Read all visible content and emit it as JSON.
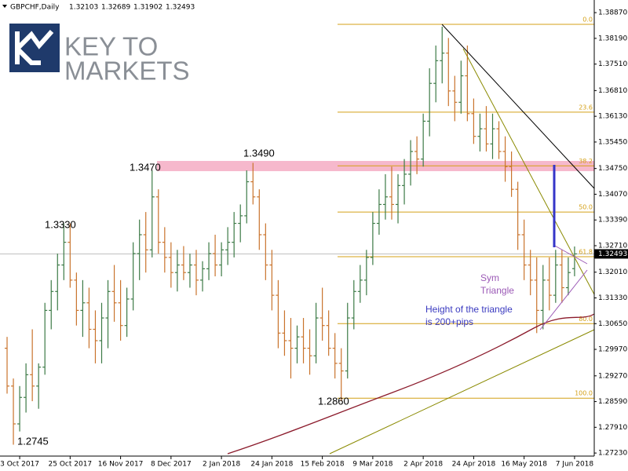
{
  "chart_data": {
    "type": "ohlc",
    "header": {
      "symbol": "GBPCHF,Daily",
      "ohlc_labels": [
        "1.32103",
        "1.32689",
        "1.31902",
        "1.32493"
      ]
    },
    "logo": {
      "line1": "KEY TO",
      "line2": "MARKETS"
    },
    "up_color": "#3c7a46",
    "down_color": "#c9732c",
    "bars": [
      [
        1.3,
        1.303,
        1.288,
        1.29
      ],
      [
        1.29,
        1.292,
        1.2745,
        1.28
      ],
      [
        1.28,
        1.29,
        1.278,
        1.287
      ],
      [
        1.287,
        1.296,
        1.283,
        1.293
      ],
      [
        1.293,
        1.305,
        1.286,
        1.29
      ],
      [
        1.29,
        1.296,
        1.284,
        1.295
      ],
      [
        1.295,
        1.312,
        1.293,
        1.31
      ],
      [
        1.31,
        1.318,
        1.305,
        1.315
      ],
      [
        1.315,
        1.325,
        1.31,
        1.322
      ],
      [
        1.322,
        1.333,
        1.318,
        1.328
      ],
      [
        1.328,
        1.333,
        1.316,
        1.318
      ],
      [
        1.318,
        1.32,
        1.306,
        1.31
      ],
      [
        1.31,
        1.318,
        1.303,
        1.312
      ],
      [
        1.312,
        1.316,
        1.3,
        1.305
      ],
      [
        1.305,
        1.31,
        1.296,
        1.302
      ],
      [
        1.302,
        1.312,
        1.296,
        1.308
      ],
      [
        1.308,
        1.318,
        1.3,
        1.315
      ],
      [
        1.315,
        1.322,
        1.307,
        1.312
      ],
      [
        1.312,
        1.318,
        1.302,
        1.306
      ],
      [
        1.306,
        1.316,
        1.303,
        1.313
      ],
      [
        1.313,
        1.328,
        1.31,
        1.325
      ],
      [
        1.325,
        1.334,
        1.318,
        1.33
      ],
      [
        1.33,
        1.336,
        1.32,
        1.326
      ],
      [
        1.326,
        1.347,
        1.324,
        1.34
      ],
      [
        1.34,
        1.342,
        1.325,
        1.328
      ],
      [
        1.328,
        1.332,
        1.32,
        1.324
      ],
      [
        1.324,
        1.328,
        1.316,
        1.32
      ],
      [
        1.32,
        1.326,
        1.315,
        1.322
      ],
      [
        1.322,
        1.327,
        1.318,
        1.32
      ],
      [
        1.32,
        1.325,
        1.316,
        1.322
      ],
      [
        1.322,
        1.326,
        1.314,
        1.318
      ],
      [
        1.318,
        1.323,
        1.315,
        1.321
      ],
      [
        1.321,
        1.328,
        1.318,
        1.325
      ],
      [
        1.325,
        1.33,
        1.319,
        1.322
      ],
      [
        1.322,
        1.328,
        1.319,
        1.326
      ],
      [
        1.326,
        1.332,
        1.322,
        1.328
      ],
      [
        1.328,
        1.336,
        1.324,
        1.333
      ],
      [
        1.333,
        1.338,
        1.328,
        1.335
      ],
      [
        1.335,
        1.347,
        1.333,
        1.344
      ],
      [
        1.344,
        1.349,
        1.338,
        1.34
      ],
      [
        1.34,
        1.342,
        1.326,
        1.33
      ],
      [
        1.33,
        1.333,
        1.318,
        1.322
      ],
      [
        1.322,
        1.326,
        1.31,
        1.314
      ],
      [
        1.314,
        1.318,
        1.3,
        1.304
      ],
      [
        1.304,
        1.31,
        1.298,
        1.302
      ],
      [
        1.302,
        1.308,
        1.292,
        1.3
      ],
      [
        1.3,
        1.306,
        1.296,
        1.303
      ],
      [
        1.303,
        1.308,
        1.296,
        1.3
      ],
      [
        1.3,
        1.305,
        1.293,
        1.298
      ],
      [
        1.298,
        1.312,
        1.296,
        1.308
      ],
      [
        1.308,
        1.316,
        1.302,
        1.306
      ],
      [
        1.306,
        1.31,
        1.298,
        1.3
      ],
      [
        1.3,
        1.304,
        1.292,
        1.296
      ],
      [
        1.296,
        1.3,
        1.286,
        1.294
      ],
      [
        1.294,
        1.312,
        1.292,
        1.308
      ],
      [
        1.308,
        1.318,
        1.305,
        1.315
      ],
      [
        1.315,
        1.322,
        1.312,
        1.318
      ],
      [
        1.318,
        1.326,
        1.314,
        1.324
      ],
      [
        1.324,
        1.336,
        1.322,
        1.333
      ],
      [
        1.333,
        1.342,
        1.33,
        1.338
      ],
      [
        1.338,
        1.346,
        1.334,
        1.34
      ],
      [
        1.34,
        1.348,
        1.334,
        1.338
      ],
      [
        1.338,
        1.346,
        1.333,
        1.343
      ],
      [
        1.343,
        1.35,
        1.338,
        1.346
      ],
      [
        1.346,
        1.355,
        1.343,
        1.352
      ],
      [
        1.352,
        1.356,
        1.346,
        1.35
      ],
      [
        1.35,
        1.362,
        1.348,
        1.36
      ],
      [
        1.36,
        1.374,
        1.356,
        1.37
      ],
      [
        1.37,
        1.38,
        1.365,
        1.376
      ],
      [
        1.376,
        1.385,
        1.37,
        1.378
      ],
      [
        1.378,
        1.382,
        1.364,
        1.368
      ],
      [
        1.368,
        1.372,
        1.36,
        1.365
      ],
      [
        1.365,
        1.376,
        1.362,
        1.372
      ],
      [
        1.372,
        1.38,
        1.36,
        1.362
      ],
      [
        1.362,
        1.366,
        1.354,
        1.356
      ],
      [
        1.356,
        1.362,
        1.352,
        1.358
      ],
      [
        1.358,
        1.364,
        1.352,
        1.354
      ],
      [
        1.354,
        1.362,
        1.35,
        1.358
      ],
      [
        1.358,
        1.36,
        1.35,
        1.352
      ],
      [
        1.352,
        1.356,
        1.344,
        1.348
      ],
      [
        1.348,
        1.352,
        1.34,
        1.342
      ],
      [
        1.342,
        1.344,
        1.326,
        1.33
      ],
      [
        1.33,
        1.334,
        1.318,
        1.322
      ],
      [
        1.322,
        1.326,
        1.314,
        1.318
      ],
      [
        1.318,
        1.324,
        1.304,
        1.31
      ],
      [
        1.31,
        1.322,
        1.305,
        1.318
      ],
      [
        1.318,
        1.324,
        1.31,
        1.314
      ],
      [
        1.314,
        1.326,
        1.312,
        1.322
      ],
      [
        1.322,
        1.326,
        1.312,
        1.316
      ],
      [
        1.316,
        1.324,
        1.314,
        1.32
      ],
      [
        1.32103,
        1.32689,
        1.31902,
        1.32493
      ]
    ],
    "xlim": [
      -0.5,
      92.5
    ],
    "xticks": [
      {
        "value": 2,
        "label": "3 Oct 2017"
      },
      {
        "value": 10,
        "label": "25 Oct 2017"
      },
      {
        "value": 18,
        "label": "16 Nov 2017"
      },
      {
        "value": 26,
        "label": "8 Dec 2017"
      },
      {
        "value": 34,
        "label": "2 Jan 2018"
      },
      {
        "value": 42,
        "label": "24 Jan 2018"
      },
      {
        "value": 50,
        "label": "15 Feb 2018"
      },
      {
        "value": 58,
        "label": "9 Mar 2018"
      },
      {
        "value": 66,
        "label": "2 Apr 2018"
      },
      {
        "value": 74,
        "label": "24 Apr 2018"
      },
      {
        "value": 82,
        "label": "16 May 2018"
      },
      {
        "value": 90,
        "label": "7 Jun 2018"
      }
    ],
    "ylim": [
      1.2717,
      1.391
    ],
    "yticks": [
      {
        "value": 1.3887,
        "label": "1.38870"
      },
      {
        "value": 1.3819,
        "label": "1.38190"
      },
      {
        "value": 1.3751,
        "label": "1.37510"
      },
      {
        "value": 1.3681,
        "label": "1.36810"
      },
      {
        "value": 1.3613,
        "label": "1.36130"
      },
      {
        "value": 1.3545,
        "label": "1.35450"
      },
      {
        "value": 1.3475,
        "label": "1.34750"
      },
      {
        "value": 1.3407,
        "label": "1.34070"
      },
      {
        "value": 1.3339,
        "label": "1.33390"
      },
      {
        "value": 1.3271,
        "label": "1.32710"
      },
      {
        "value": 1.3201,
        "label": "1.32010"
      },
      {
        "value": 1.3133,
        "label": "1.31330"
      },
      {
        "value": 1.3065,
        "label": "1.30650"
      },
      {
        "value": 1.2997,
        "label": "1.29970"
      },
      {
        "value": 1.2927,
        "label": "1.29270"
      },
      {
        "value": 1.2859,
        "label": "1.28590"
      },
      {
        "value": 1.2791,
        "label": "1.27910"
      },
      {
        "value": 1.2723,
        "label": "1.27230"
      }
    ],
    "last_price": {
      "value": 1.32493,
      "label": "1.32493"
    },
    "zone": {
      "values": [
        1.3468,
        1.3495
      ],
      "color": "#f6b8cc"
    },
    "fibonacci": {
      "color": "#d4a017",
      "levels": [
        {
          "value": 1.3856,
          "label": "0.0"
        },
        {
          "value": 1.3624,
          "label": "23.6"
        },
        {
          "value": 1.3482,
          "label": "38.2"
        },
        {
          "value": 1.336,
          "label": "50.0"
        },
        {
          "value": 1.3242,
          "label": "61.8"
        },
        {
          "value": 1.3065,
          "label": "80.0"
        },
        {
          "value": 1.2868,
          "label": "100.0"
        }
      ]
    },
    "annotations": [
      "1.3470",
      "1.3490",
      "1.3330",
      "1.2745",
      "1.2860"
    ],
    "notes": [
      [
        "Sym",
        "Triangle"
      ],
      [
        "Height of the triangle",
        "is 200+pips"
      ]
    ]
  }
}
